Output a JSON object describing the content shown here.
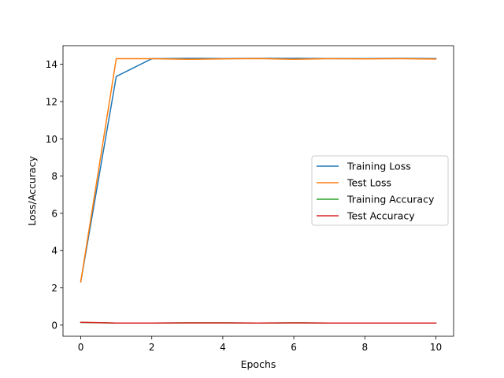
{
  "chart_data": {
    "type": "line",
    "xlabel": "Epochs",
    "ylabel": "Loss/Accuracy",
    "xlim": [
      -0.5,
      10.5
    ],
    "ylim": [
      -0.6,
      15.0
    ],
    "xticks": [
      0,
      2,
      4,
      6,
      8,
      10
    ],
    "yticks": [
      0,
      2,
      4,
      6,
      8,
      10,
      12,
      14
    ],
    "grid": false,
    "legend_position": "center-right",
    "x": [
      0,
      1,
      2,
      3,
      4,
      5,
      6,
      7,
      8,
      9,
      10
    ],
    "series": [
      {
        "name": "Training Loss",
        "color": "#1f77b4",
        "values": [
          2.32,
          13.35,
          14.3,
          14.32,
          14.31,
          14.32,
          14.32,
          14.31,
          14.31,
          14.32,
          14.31
        ]
      },
      {
        "name": "Test Loss",
        "color": "#ff7f0e",
        "values": [
          2.32,
          14.3,
          14.3,
          14.27,
          14.29,
          14.31,
          14.27,
          14.3,
          14.29,
          14.3,
          14.28
        ]
      },
      {
        "name": "Training Accuracy",
        "color": "#2ca02c",
        "values": [
          0.14,
          0.11,
          0.11,
          0.12,
          0.12,
          0.11,
          0.12,
          0.11,
          0.11,
          0.11,
          0.11
        ]
      },
      {
        "name": "Test Accuracy",
        "color": "#d62728",
        "values": [
          0.15,
          0.11,
          0.11,
          0.12,
          0.12,
          0.11,
          0.12,
          0.11,
          0.11,
          0.11,
          0.11
        ]
      }
    ]
  }
}
